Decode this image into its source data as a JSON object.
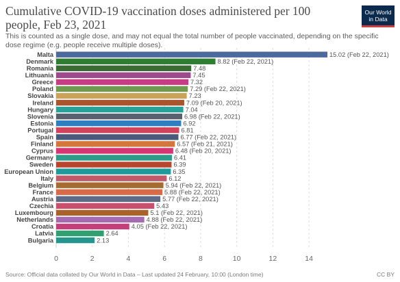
{
  "header": {
    "title": "Cumulative COVID-19 vaccination doses administered per 100 people, Feb 23, 2021",
    "subtitle": "This is counted as a single dose, and may not equal the total number of people vaccinated, depending on the specific dose regime (e.g. people receive multiple doses).",
    "logo_line1": "Our World",
    "logo_line2": "in Data"
  },
  "footer": {
    "source": "Source: Official data collated by Our World in Data – Last updated 24 February, 10:00 (London time)",
    "license": "CC BY"
  },
  "colors": {
    "logo_bg": "#0b2a4e",
    "logo_accent": "#cd3f3f"
  },
  "chart_data": {
    "type": "bar",
    "orientation": "horizontal",
    "xlim": [
      0,
      15.02
    ],
    "xticks": [
      0,
      2,
      4,
      6,
      8,
      10,
      12,
      14
    ],
    "grid": "vertical dashed",
    "bars": [
      {
        "category": "Malta",
        "value": 15.02,
        "label": "15.02 (Feb 22, 2021)",
        "color": "#4c6a9c"
      },
      {
        "category": "Denmark",
        "value": 8.82,
        "label": "8.82 (Feb 22, 2021)",
        "color": "#2e7d32"
      },
      {
        "category": "Romania",
        "value": 7.48,
        "label": "7.48",
        "color": "#3a6b35"
      },
      {
        "category": "Lithuania",
        "value": 7.45,
        "label": "7.45",
        "color": "#9c4a8c"
      },
      {
        "category": "Greece",
        "value": 7.32,
        "label": "7.32",
        "color": "#c73d83"
      },
      {
        "category": "Poland",
        "value": 7.29,
        "label": "7.29 (Feb 22, 2021)",
        "color": "#6f9a4f"
      },
      {
        "category": "Slovakia",
        "value": 7.23,
        "label": "7.23",
        "color": "#c9a35b"
      },
      {
        "category": "Ireland",
        "value": 7.09,
        "label": "7.09 (Feb 20, 2021)",
        "color": "#a8552e"
      },
      {
        "category": "Hungary",
        "value": 7.04,
        "label": "7.04",
        "color": "#2aa198"
      },
      {
        "category": "Slovenia",
        "value": 6.98,
        "label": "6.98 (Feb 22, 2021)",
        "color": "#59606f"
      },
      {
        "category": "Estonia",
        "value": 6.92,
        "label": "6.92",
        "color": "#2f7ec1"
      },
      {
        "category": "Portugal",
        "value": 6.81,
        "label": "6.81",
        "color": "#d0435b"
      },
      {
        "category": "Spain",
        "value": 6.77,
        "label": "6.77 (Feb 22, 2021)",
        "color": "#4a5a7a"
      },
      {
        "category": "Finland",
        "value": 6.57,
        "label": "6.57 (Feb 21, 2021)",
        "color": "#d4763c"
      },
      {
        "category": "Cyprus",
        "value": 6.48,
        "label": "6.48 (Feb 20, 2021)",
        "color": "#d63473"
      },
      {
        "category": "Germany",
        "value": 6.41,
        "label": "6.41",
        "color": "#2d9b8a"
      },
      {
        "category": "Sweden",
        "value": 6.39,
        "label": "6.39",
        "color": "#b8462e"
      },
      {
        "category": "European Union",
        "value": 6.35,
        "label": "6.35",
        "color": "#1f9a9a"
      },
      {
        "category": "Italy",
        "value": 6.12,
        "label": "6.12",
        "color": "#c05a6a"
      },
      {
        "category": "Belgium",
        "value": 5.94,
        "label": "5.94 (Feb 22, 2021)",
        "color": "#a56b2f"
      },
      {
        "category": "France",
        "value": 5.88,
        "label": "5.88 (Feb 22, 2021)",
        "color": "#d96a48"
      },
      {
        "category": "Austria",
        "value": 5.77,
        "label": "5.77 (Feb 22, 2021)",
        "color": "#5d6b86"
      },
      {
        "category": "Czechia",
        "value": 5.43,
        "label": "5.43",
        "color": "#c94f6d"
      },
      {
        "category": "Luxembourg",
        "value": 5.1,
        "label": "5.1 (Feb 22, 2021)",
        "color": "#a8622a"
      },
      {
        "category": "Netherlands",
        "value": 4.88,
        "label": "4.88 (Feb 22, 2021)",
        "color": "#a56bb0"
      },
      {
        "category": "Croatia",
        "value": 4.05,
        "label": "4.05 (Feb 22, 2021)",
        "color": "#c3407a"
      },
      {
        "category": "Latvia",
        "value": 2.64,
        "label": "2.64",
        "color": "#30a070"
      },
      {
        "category": "Bulgaria",
        "value": 2.13,
        "label": "2.13",
        "color": "#25968e"
      }
    ]
  }
}
